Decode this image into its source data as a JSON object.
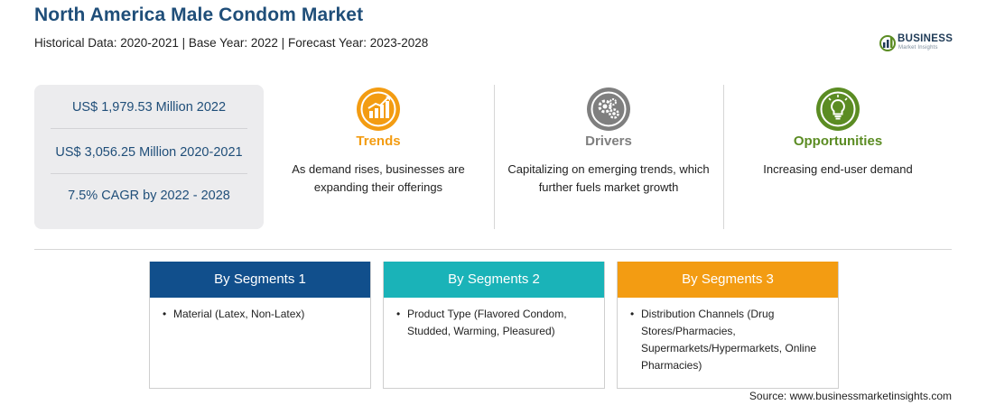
{
  "header": {
    "title": "North America Male Condom Market",
    "subtitle": "Historical Data: 2020-2021 | Base Year: 2022 | Forecast Year: 2023-2028"
  },
  "logo": {
    "word": "BUSINESS",
    "sub": "Market Insights"
  },
  "stats": [
    "US$ 1,979.53 Million 2022",
    "US$ 3,056.25 Million 2020-2021",
    "7.5% CAGR by 2022 - 2028"
  ],
  "factors": [
    {
      "title": "Trends",
      "text": "As demand rises, businesses are expanding their offerings",
      "color": "#f39c12",
      "icon": "chart-trend-icon"
    },
    {
      "title": "Drivers",
      "text": "Capitalizing on emerging trends, which further fuels market growth",
      "color": "#7f7f7f",
      "icon": "gears-icon"
    },
    {
      "title": "Opportunities",
      "text": "Increasing end-user demand",
      "color": "#5b8c23",
      "icon": "lightbulb-icon"
    }
  ],
  "segments": [
    {
      "title": "By Segments 1",
      "color": "#114f8c",
      "items": [
        "Material (Latex, Non-Latex)"
      ]
    },
    {
      "title": "By Segments 2",
      "color": "#1ab3b8",
      "items": [
        "Product Type (Flavored Condom, Studded, Warming, Pleasured)"
      ]
    },
    {
      "title": "By Segments 3",
      "color": "#f39c12",
      "items": [
        "Distribution Channels (Drug Stores/Pharmacies, Supermarkets/Hypermarkets, Online Pharmacies)"
      ]
    }
  ],
  "source": "Source: www.businessmarketinsights.com"
}
